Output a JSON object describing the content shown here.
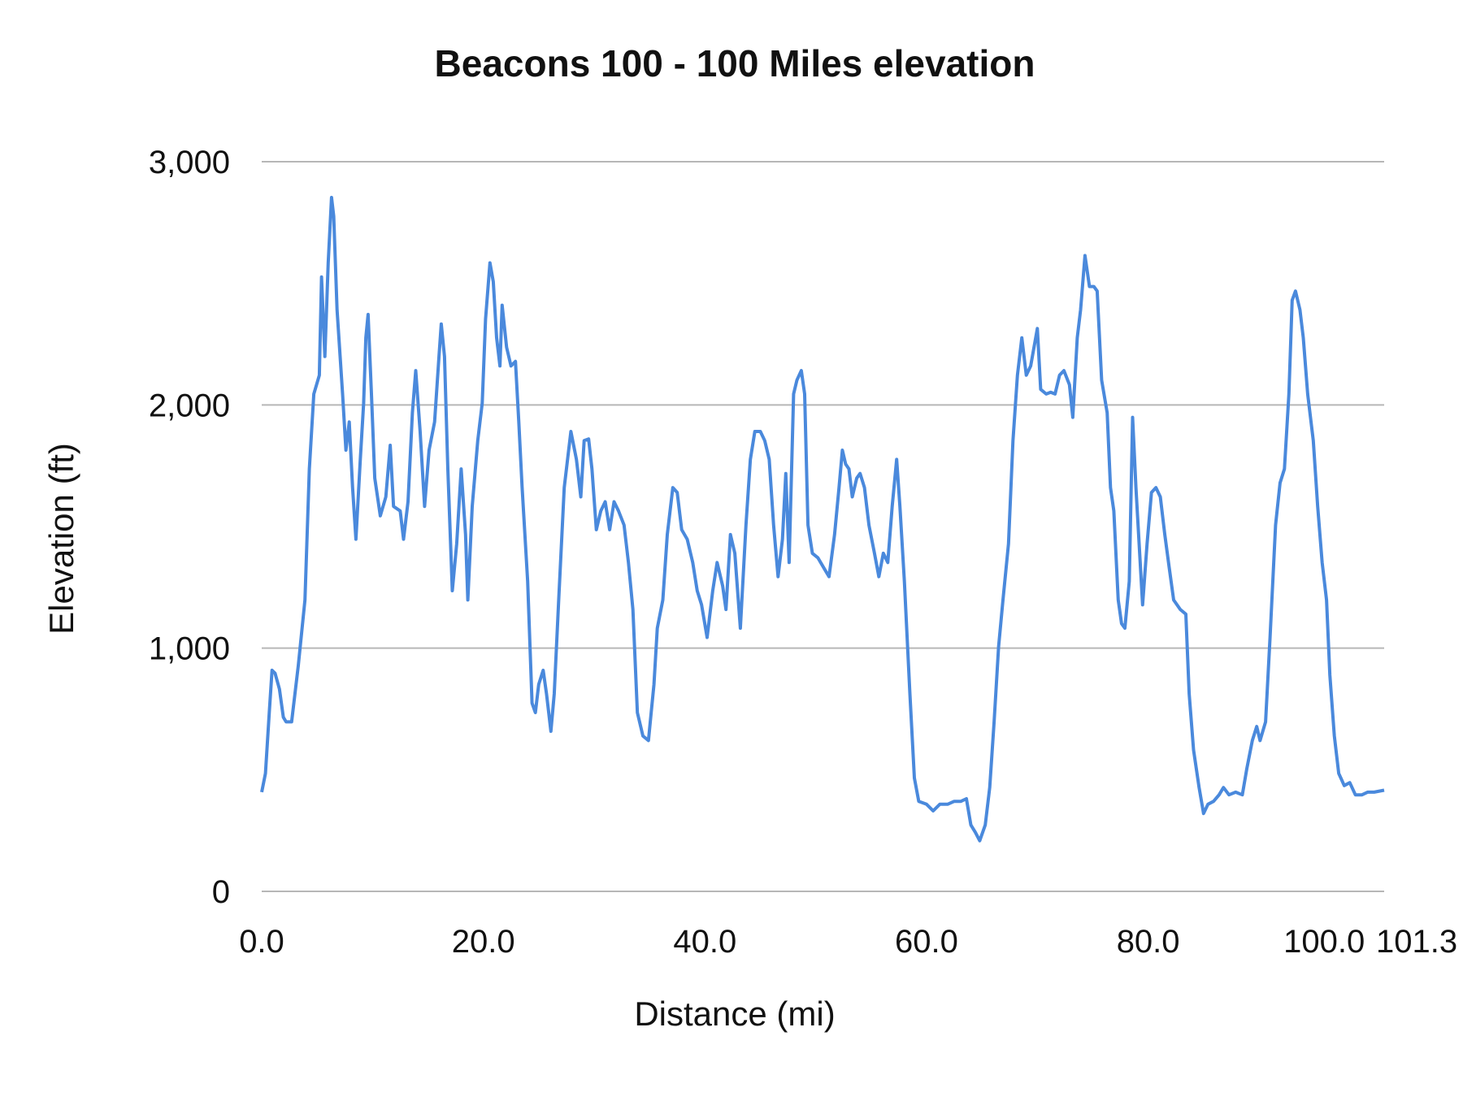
{
  "chart_data": {
    "type": "line",
    "title": "Beacons 100 - 100 Miles elevation",
    "xlabel": "Distance (mi)",
    "ylabel": "Elevation (ft)",
    "xlim": [
      0,
      101.3
    ],
    "ylim": [
      0,
      3000
    ],
    "x_ticks": [
      0,
      20,
      40,
      60,
      80,
      100,
      101.3
    ],
    "x_tick_labels": [
      "0.0",
      "20.0",
      "40.0",
      "60.0",
      "80.0",
      "100.0",
      "101.3"
    ],
    "y_ticks": [
      0,
      1000,
      2000,
      3000
    ],
    "y_tick_labels": [
      "0",
      "1,000",
      "2,000",
      "3,000"
    ],
    "grid": "horizontal",
    "legend": "none",
    "line_color": "#4a89dc",
    "grid_color": "#b7b7b7",
    "x": [
      0,
      0.34,
      0.68,
      0.93,
      1.2,
      1.6,
      1.95,
      2.2,
      2.7,
      3.3,
      3.9,
      4.3,
      4.7,
      5.2,
      5.4,
      5.7,
      6.0,
      6.3,
      6.5,
      6.8,
      7.3,
      7.6,
      7.9,
      8.2,
      8.5,
      8.9,
      9.2,
      9.4,
      9.6,
      9.9,
      10.2,
      10.7,
      11.2,
      11.6,
      11.9,
      12.5,
      12.8,
      13.2,
      13.6,
      13.9,
      14.3,
      14.7,
      15.1,
      15.6,
      16.0,
      16.2,
      16.5,
      16.8,
      17.2,
      17.6,
      18.0,
      18.4,
      18.6,
      19.0,
      19.5,
      19.9,
      20.2,
      20.6,
      20.9,
      21.2,
      21.5,
      21.7,
      22.1,
      22.5,
      22.9,
      23.2,
      23.5,
      24.0,
      24.4,
      24.7,
      25.0,
      25.4,
      25.7,
      26.1,
      26.4,
      26.8,
      27.3,
      27.6,
      27.9,
      28.4,
      28.8,
      29.1,
      29.5,
      29.8,
      30.2,
      30.6,
      31.0,
      31.4,
      31.8,
      32.2,
      32.7,
      33.1,
      33.5,
      33.9,
      34.4,
      34.9,
      35.4,
      35.7,
      36.2,
      36.6,
      37.1,
      37.5,
      37.9,
      38.4,
      38.9,
      39.3,
      39.7,
      40.2,
      40.7,
      41.1,
      41.6,
      41.9,
      42.3,
      42.7,
      43.2,
      43.7,
      44.1,
      44.5,
      45.0,
      45.4,
      45.8,
      46.2,
      46.6,
      47.0,
      47.3,
      47.6,
      48.0,
      48.3,
      48.7,
      49.0,
      49.3,
      49.7,
      50.2,
      50.7,
      51.2,
      51.7,
      52.1,
      52.4,
      52.7,
      53.0,
      53.3,
      53.7,
      54.0,
      54.4,
      54.8,
      55.3,
      55.7,
      56.1,
      56.5,
      56.9,
      57.3,
      57.6,
      58.0,
      58.5,
      58.9,
      59.3,
      60.0,
      60.6,
      61.2,
      61.9,
      62.5,
      63.1,
      63.6,
      64.0,
      64.4,
      64.8,
      65.3,
      65.7,
      66.1,
      66.5,
      66.9,
      67.4,
      67.8,
      68.2,
      68.6,
      69.0,
      69.4,
      70.0,
      70.3,
      70.8,
      71.2,
      71.6,
      72.0,
      72.4,
      72.9,
      73.2,
      73.6,
      73.9,
      74.3,
      74.7,
      75.1,
      75.4,
      75.8,
      76.3,
      76.6,
      76.9,
      77.3,
      77.6,
      77.9,
      78.3,
      78.6,
      78.9,
      79.5,
      79.9,
      80.3,
      80.7,
      81.1,
      81.5,
      81.9,
      82.3,
      82.9,
      83.4,
      83.7,
      84.1,
      84.6,
      85.0,
      85.4,
      85.9,
      86.4,
      86.8,
      87.3,
      87.9,
      88.5,
      88.9,
      89.4,
      89.8,
      90.1,
      90.6,
      91.0,
      91.5,
      91.9,
      92.3,
      92.7,
      93.0,
      93.3,
      93.7,
      94.0,
      94.4,
      94.9,
      95.3,
      95.7,
      96.1,
      96.4,
      96.8,
      97.2,
      97.7,
      98.2,
      98.7,
      99.3,
      99.8,
      100.4,
      101.3
    ],
    "y": [
      408,
      485,
      735,
      909,
      897,
      832,
      716,
      697,
      697,
      928,
      1198,
      1737,
      2045,
      2122,
      2526,
      2199,
      2584,
      2853,
      2776,
      2391,
      2045,
      1814,
      1930,
      1660,
      1448,
      1776,
      2007,
      2276,
      2372,
      2045,
      1699,
      1544,
      1622,
      1834,
      1583,
      1564,
      1448,
      1602,
      1968,
      2141,
      1891,
      1583,
      1814,
      1930,
      2199,
      2333,
      2199,
      1737,
      1236,
      1429,
      1737,
      1467,
      1198,
      1583,
      1853,
      2007,
      2353,
      2584,
      2507,
      2276,
      2160,
      2410,
      2237,
      2160,
      2179,
      1930,
      1660,
      1275,
      774,
      735,
      851,
      909,
      812,
      658,
      812,
      1198,
      1660,
      1776,
      1891,
      1776,
      1622,
      1853,
      1860,
      1737,
      1487,
      1564,
      1602,
      1487,
      1602,
      1564,
      1506,
      1352,
      1159,
      735,
      639,
      620,
      851,
      1082,
      1198,
      1467,
      1660,
      1640,
      1487,
      1448,
      1352,
      1236,
      1178,
      1044,
      1236,
      1352,
      1256,
      1159,
      1467,
      1390,
      1082,
      1506,
      1776,
      1891,
      1891,
      1853,
      1776,
      1506,
      1294,
      1448,
      1718,
      1352,
      2045,
      2102,
      2141,
      2045,
      1506,
      1390,
      1371,
      1332,
      1294,
      1467,
      1660,
      1814,
      1757,
      1737,
      1622,
      1699,
      1718,
      1660,
      1506,
      1390,
      1294,
      1390,
      1352,
      1583,
      1776,
      1583,
      1275,
      812,
      466,
      370,
      358,
      331,
      358,
      358,
      370,
      370,
      381,
      273,
      243,
      208,
      273,
      427,
      697,
      1005,
      1198,
      1429,
      1853,
      2122,
      2276,
      2122,
      2160,
      2314,
      2064,
      2045,
      2052,
      2045,
      2122,
      2141,
      2083,
      1949,
      2276,
      2391,
      2614,
      2487,
      2487,
      2468,
      2102,
      1968,
      1660,
      1564,
      1198,
      1101,
      1082,
      1275,
      1949,
      1660,
      1178,
      1429,
      1640,
      1660,
      1622,
      1467,
      1332,
      1198,
      1159,
      1140,
      812,
      581,
      427,
      320,
      358,
      370,
      397,
      427,
      397,
      408,
      397,
      504,
      620,
      678,
      620,
      697,
      1044,
      1506,
      1679,
      1737,
      2045,
      2430,
      2468,
      2391,
      2276,
      2045,
      1853,
      1583,
      1352,
      1198,
      889,
      639,
      485,
      435,
      447,
      397,
      397,
      408,
      408,
      416
    ]
  }
}
